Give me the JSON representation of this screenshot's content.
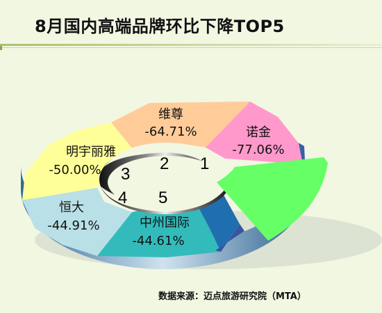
{
  "title": "8月国内高端品牌环比下降TOP5",
  "source": "数据来源：迈点旅游研究院（MTA）",
  "chart_data": {
    "type": "pie",
    "style": "3d-donut",
    "title": "8月国内高端品牌环比下降TOP5",
    "slices": [
      {
        "name": "维尊",
        "value": -64.71,
        "display": "-64.71%",
        "rank": "2",
        "color": "#ffcc99"
      },
      {
        "name": "诺金",
        "value": -77.06,
        "display": "-77.06%",
        "rank": "1",
        "color": "#ff99cc"
      },
      {
        "name": "中州国际",
        "value": -44.61,
        "display": "-44.61%",
        "rank": "5",
        "color": "#33bbbb"
      },
      {
        "name": "恒大",
        "value": -44.91,
        "display": "-44.91%",
        "rank": "4",
        "color": "#b9e0e6"
      },
      {
        "name": "明宇丽雅",
        "value": -50.0,
        "display": "-50.00%",
        "rank": "3",
        "color": "#ffff99"
      }
    ],
    "exploded_color": "#66ff66",
    "dark_blue_color": "#1f6fb0"
  }
}
